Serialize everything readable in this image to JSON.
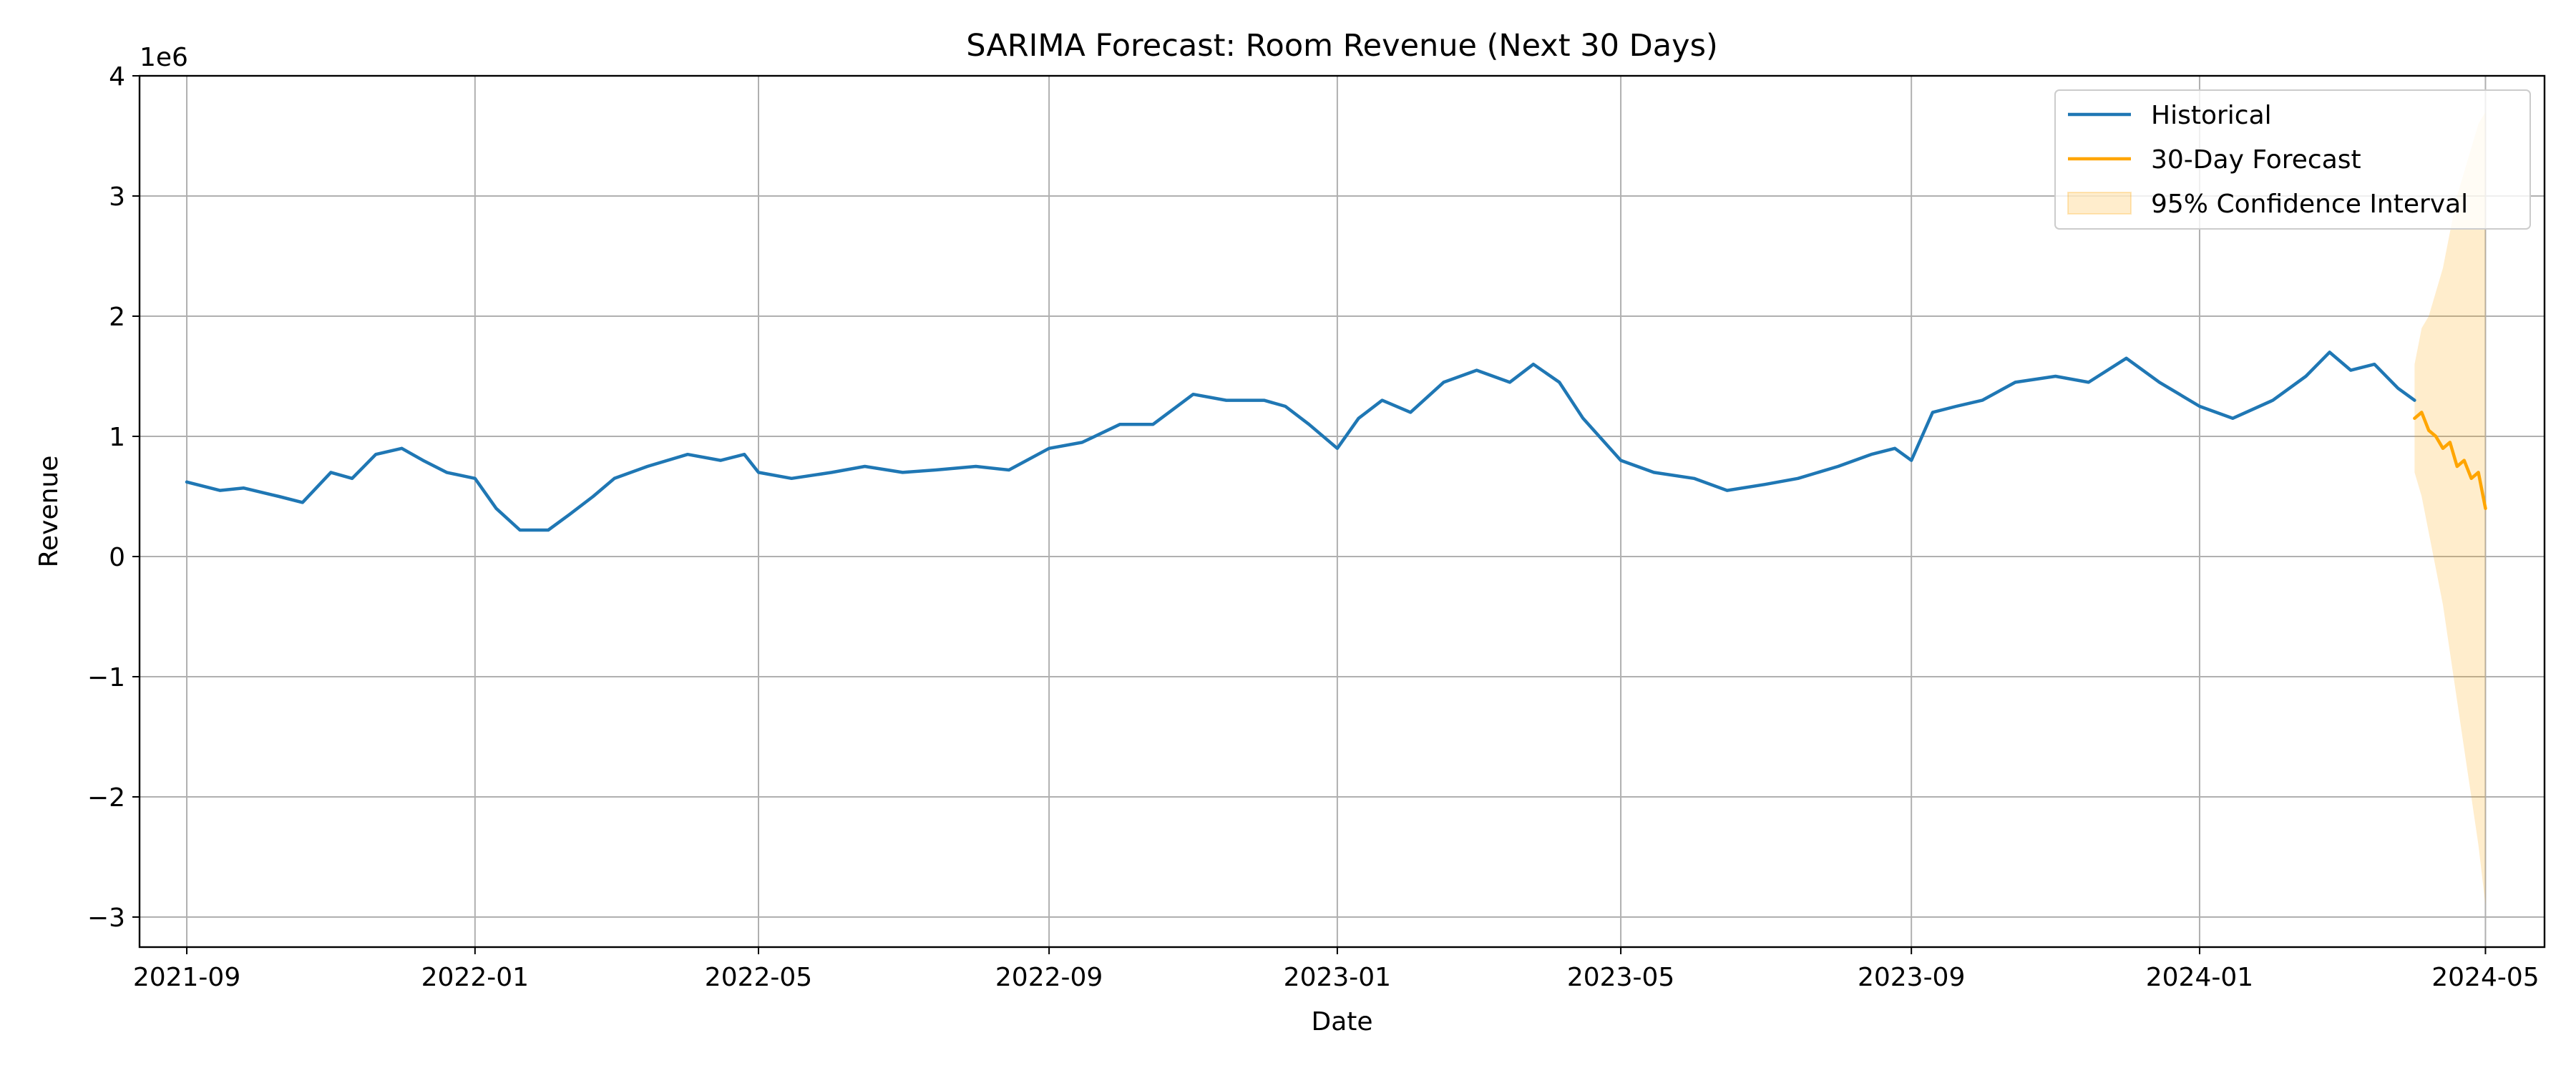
{
  "chart_data": {
    "type": "line",
    "title": "SARIMA Forecast: Room Revenue (Next 30 Days)",
    "xlabel": "Date",
    "ylabel": "Revenue",
    "y_offset_label": "1e6",
    "y_scale_factor": 1000000,
    "xlim": [
      "2021-08-12",
      "2024-05-26"
    ],
    "ylim": [
      -3250000,
      4000000
    ],
    "x_ticks": [
      "2021-09",
      "2022-01",
      "2022-05",
      "2022-09",
      "2023-01",
      "2023-05",
      "2023-09",
      "2024-01",
      "2024-05"
    ],
    "x_tick_dates": [
      "2021-09-01",
      "2022-01-01",
      "2022-05-01",
      "2022-09-01",
      "2023-01-01",
      "2023-05-01",
      "2023-09-01",
      "2024-01-01",
      "2024-05-01"
    ],
    "y_ticks": [
      -3,
      -2,
      -1,
      0,
      1,
      2,
      3,
      4
    ],
    "y_tick_labels": [
      "−3",
      "−2",
      "−1",
      "0",
      "1",
      "2",
      "3",
      "4"
    ],
    "grid": true,
    "legend_position": "top-right",
    "series": [
      {
        "name": "Historical",
        "color": "#1f77b4",
        "x": [
          "2021-09-01",
          "2021-09-15",
          "2021-09-25",
          "2021-10-10",
          "2021-10-20",
          "2021-11-01",
          "2021-11-10",
          "2021-11-20",
          "2021-12-01",
          "2021-12-10",
          "2021-12-20",
          "2022-01-01",
          "2022-01-10",
          "2022-01-20",
          "2022-02-01",
          "2022-02-10",
          "2022-02-20",
          "2022-03-01",
          "2022-03-15",
          "2022-04-01",
          "2022-04-15",
          "2022-04-25",
          "2022-05-01",
          "2022-05-15",
          "2022-06-01",
          "2022-06-15",
          "2022-07-01",
          "2022-07-15",
          "2022-08-01",
          "2022-08-15",
          "2022-09-01",
          "2022-09-15",
          "2022-10-01",
          "2022-10-15",
          "2022-11-01",
          "2022-11-15",
          "2022-12-01",
          "2022-12-10",
          "2022-12-20",
          "2023-01-01",
          "2023-01-10",
          "2023-01-20",
          "2023-02-01",
          "2023-02-15",
          "2023-03-01",
          "2023-03-15",
          "2023-03-25",
          "2023-04-05",
          "2023-04-15",
          "2023-05-01",
          "2023-05-15",
          "2023-06-01",
          "2023-06-15",
          "2023-07-01",
          "2023-07-15",
          "2023-08-01",
          "2023-08-15",
          "2023-08-25",
          "2023-09-01",
          "2023-09-10",
          "2023-09-20",
          "2023-10-01",
          "2023-10-15",
          "2023-11-01",
          "2023-11-15",
          "2023-12-01",
          "2023-12-15",
          "2024-01-01",
          "2024-01-15",
          "2024-02-01",
          "2024-02-15",
          "2024-02-25",
          "2024-03-05",
          "2024-03-15",
          "2024-03-25",
          "2024-04-01"
        ],
        "values": [
          620000,
          550000,
          570000,
          500000,
          450000,
          700000,
          650000,
          850000,
          900000,
          800000,
          700000,
          650000,
          400000,
          220000,
          220000,
          350000,
          500000,
          650000,
          750000,
          850000,
          800000,
          850000,
          700000,
          650000,
          700000,
          750000,
          700000,
          720000,
          750000,
          720000,
          900000,
          950000,
          1100000,
          1100000,
          1350000,
          1300000,
          1300000,
          1250000,
          1100000,
          900000,
          1150000,
          1300000,
          1200000,
          1450000,
          1550000,
          1450000,
          1600000,
          1450000,
          1150000,
          800000,
          700000,
          650000,
          550000,
          600000,
          650000,
          750000,
          850000,
          900000,
          800000,
          1200000,
          1250000,
          1300000,
          1450000,
          1500000,
          1450000,
          1650000,
          1450000,
          1250000,
          1150000,
          1300000,
          1500000,
          1700000,
          1550000,
          1600000,
          1400000,
          1300000
        ]
      },
      {
        "name": "30-Day Forecast",
        "color": "#ffa500",
        "x": [
          "2024-04-01",
          "2024-04-04",
          "2024-04-07",
          "2024-04-10",
          "2024-04-13",
          "2024-04-16",
          "2024-04-19",
          "2024-04-22",
          "2024-04-25",
          "2024-04-28",
          "2024-05-01"
        ],
        "values": [
          1150000,
          1200000,
          1050000,
          1000000,
          900000,
          950000,
          750000,
          800000,
          650000,
          700000,
          400000
        ]
      }
    ],
    "confidence_interval": {
      "name": "95% Confidence Interval",
      "color": "#ffa500",
      "x": [
        "2024-04-01",
        "2024-04-04",
        "2024-04-07",
        "2024-04-10",
        "2024-04-13",
        "2024-04-16",
        "2024-04-19",
        "2024-04-22",
        "2024-04-25",
        "2024-04-28",
        "2024-05-01"
      ],
      "lower": [
        700000,
        500000,
        200000,
        -100000,
        -400000,
        -800000,
        -1200000,
        -1600000,
        -2000000,
        -2400000,
        -2900000
      ],
      "upper": [
        1600000,
        1900000,
        2000000,
        2200000,
        2400000,
        2700000,
        3000000,
        3200000,
        3400000,
        3600000,
        3700000
      ]
    }
  }
}
